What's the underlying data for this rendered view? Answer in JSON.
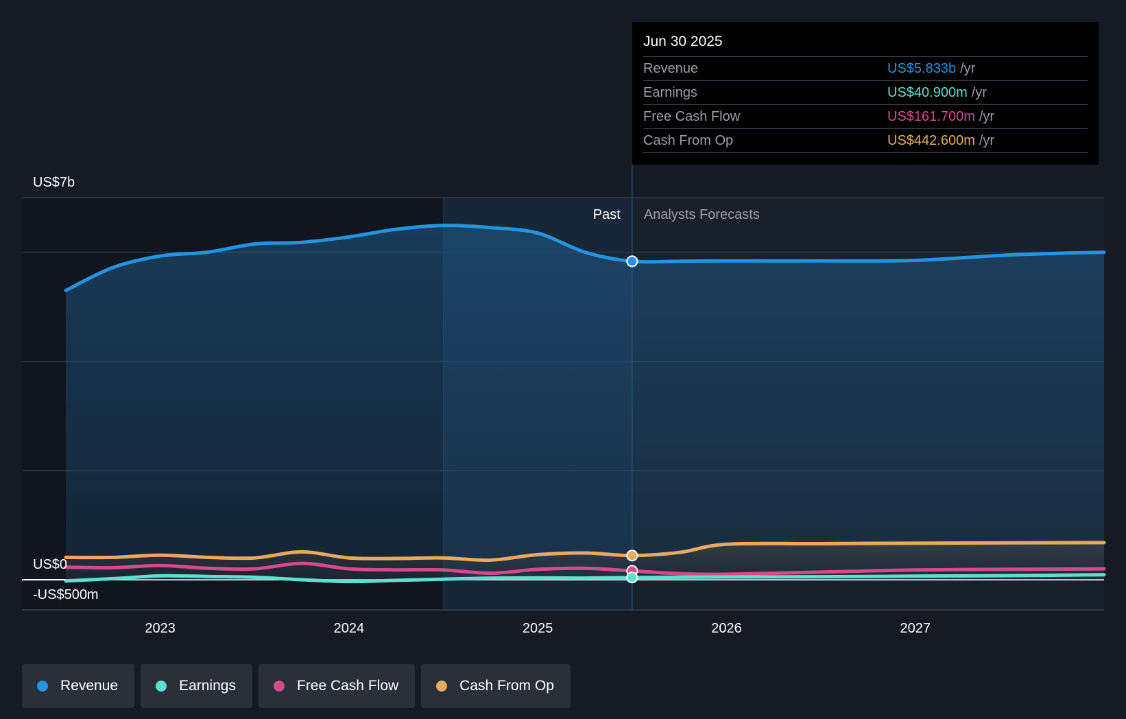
{
  "chart_data": {
    "type": "line",
    "title": "",
    "xlabel": "",
    "ylabel": "",
    "y_unit": "US$ millions",
    "ylim": [
      -500,
      7000
    ],
    "y_tick_labels": [
      {
        "value": 7000,
        "label": "US$7b"
      },
      {
        "value": 0,
        "label": "US$0"
      },
      {
        "value": -500,
        "label": "-US$500m"
      }
    ],
    "x_tick_labels": [
      {
        "value": 2023,
        "label": "2023"
      },
      {
        "value": 2024,
        "label": "2024"
      },
      {
        "value": 2025,
        "label": "2025"
      },
      {
        "value": 2026,
        "label": "2026"
      },
      {
        "value": 2027,
        "label": "2027"
      }
    ],
    "xlim": [
      2022.25,
      2028.0
    ],
    "past_label": "Past",
    "forecast_label": "Analysts Forecasts",
    "divider_x": 2025.5,
    "highlight_start_x": 2024.5,
    "series": [
      {
        "name": "Revenue",
        "color": "#2394df",
        "fill": true,
        "points": [
          [
            2022.5,
            5300
          ],
          [
            2022.75,
            5720
          ],
          [
            2023.0,
            5930
          ],
          [
            2023.25,
            6000
          ],
          [
            2023.5,
            6150
          ],
          [
            2023.75,
            6180
          ],
          [
            2024.0,
            6280
          ],
          [
            2024.25,
            6420
          ],
          [
            2024.5,
            6490
          ],
          [
            2024.75,
            6450
          ],
          [
            2025.0,
            6350
          ],
          [
            2025.25,
            6000
          ],
          [
            2025.5,
            5833
          ],
          [
            2025.75,
            5835
          ],
          [
            2026.0,
            5840
          ],
          [
            2026.5,
            5840
          ],
          [
            2027.0,
            5850
          ],
          [
            2027.5,
            5950
          ],
          [
            2028.0,
            6000
          ]
        ]
      },
      {
        "name": "Earnings",
        "color": "#5de0ce",
        "fill": false,
        "points": [
          [
            2022.5,
            -20
          ],
          [
            2022.75,
            20
          ],
          [
            2023.0,
            70
          ],
          [
            2023.25,
            60
          ],
          [
            2023.5,
            45
          ],
          [
            2023.75,
            0
          ],
          [
            2024.0,
            -30
          ],
          [
            2024.25,
            -10
          ],
          [
            2024.5,
            10
          ],
          [
            2024.75,
            30
          ],
          [
            2025.0,
            35
          ],
          [
            2025.25,
            30
          ],
          [
            2025.5,
            40.9
          ],
          [
            2025.75,
            45
          ],
          [
            2026.0,
            50
          ],
          [
            2026.5,
            55
          ],
          [
            2027.0,
            65
          ],
          [
            2027.5,
            75
          ],
          [
            2028.0,
            90
          ]
        ]
      },
      {
        "name": "Free Cash Flow",
        "color": "#d64a8c",
        "fill": false,
        "points": [
          [
            2022.5,
            230
          ],
          [
            2022.75,
            220
          ],
          [
            2023.0,
            260
          ],
          [
            2023.25,
            210
          ],
          [
            2023.5,
            200
          ],
          [
            2023.75,
            300
          ],
          [
            2024.0,
            200
          ],
          [
            2024.25,
            180
          ],
          [
            2024.5,
            180
          ],
          [
            2024.75,
            120
          ],
          [
            2025.0,
            190
          ],
          [
            2025.25,
            210
          ],
          [
            2025.5,
            161.7
          ],
          [
            2025.75,
            110
          ],
          [
            2026.0,
            100
          ],
          [
            2026.5,
            140
          ],
          [
            2027.0,
            180
          ],
          [
            2027.5,
            190
          ],
          [
            2028.0,
            200
          ]
        ]
      },
      {
        "name": "Cash From Op",
        "color": "#e8aa5c",
        "fill": false,
        "points": [
          [
            2022.5,
            410
          ],
          [
            2022.75,
            410
          ],
          [
            2023.0,
            450
          ],
          [
            2023.25,
            410
          ],
          [
            2023.5,
            400
          ],
          [
            2023.75,
            510
          ],
          [
            2024.0,
            400
          ],
          [
            2024.25,
            390
          ],
          [
            2024.5,
            400
          ],
          [
            2024.75,
            360
          ],
          [
            2025.0,
            460
          ],
          [
            2025.25,
            490
          ],
          [
            2025.5,
            442.6
          ],
          [
            2025.75,
            500
          ],
          [
            2026.0,
            650
          ],
          [
            2026.5,
            660
          ],
          [
            2027.0,
            670
          ],
          [
            2027.5,
            675
          ],
          [
            2028.0,
            680
          ]
        ]
      }
    ],
    "highlight_point_x": 2025.5
  },
  "tooltip": {
    "date": "Jun 30 2025",
    "rows": [
      {
        "label": "Revenue",
        "value": "US$5.833b",
        "unit": "/yr",
        "color": "#2394df"
      },
      {
        "label": "Earnings",
        "value": "US$40.900m",
        "unit": "/yr",
        "color": "#5de0ce"
      },
      {
        "label": "Free Cash Flow",
        "value": "US$161.700m",
        "unit": "/yr",
        "color": "#d64a8c"
      },
      {
        "label": "Cash From Op",
        "value": "US$442.600m",
        "unit": "/yr",
        "color": "#e8aa5c"
      }
    ]
  },
  "legend": [
    {
      "label": "Revenue",
      "color": "#2394df"
    },
    {
      "label": "Earnings",
      "color": "#5de0ce"
    },
    {
      "label": "Free Cash Flow",
      "color": "#d64a8c"
    },
    {
      "label": "Cash From Op",
      "color": "#e8aa5c"
    }
  ]
}
